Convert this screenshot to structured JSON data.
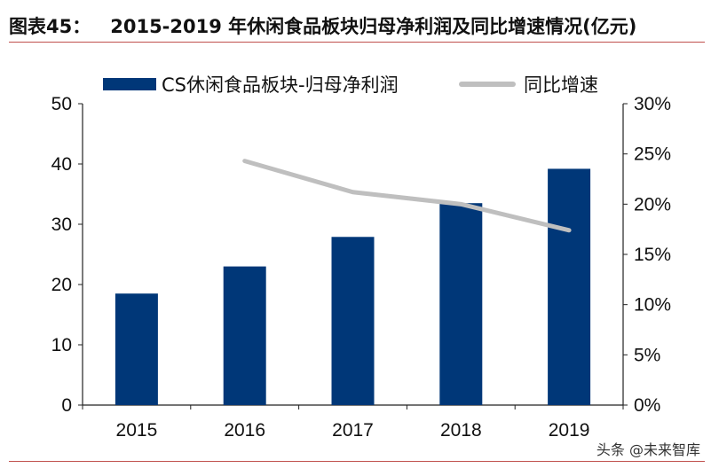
{
  "title": {
    "figure_no": "图表45：",
    "text": "2015-2019 年休闲食品板块归母净利润及同比增速情况(亿元)"
  },
  "watermark": "头条 @未来智库",
  "chart_data": {
    "type": "bar+line",
    "categories": [
      "2015",
      "2016",
      "2017",
      "2018",
      "2019"
    ],
    "series": [
      {
        "name": "CS休闲食品板块-归母净利润",
        "type": "bar",
        "axis": "left",
        "color": "#003778",
        "values": [
          18.5,
          23.0,
          27.9,
          33.5,
          39.2
        ]
      },
      {
        "name": "同比增速",
        "type": "line",
        "axis": "right",
        "color": "#bfbfbf",
        "values": [
          null,
          24.3,
          21.2,
          20.0,
          17.4
        ]
      }
    ],
    "left_axis": {
      "ylim": [
        0,
        50
      ],
      "ticks": [
        "0",
        "10",
        "20",
        "30",
        "40",
        "50"
      ]
    },
    "right_axis": {
      "ylim": [
        0,
        30
      ],
      "ticks": [
        "0%",
        "5%",
        "10%",
        "15%",
        "20%",
        "25%",
        "30%"
      ]
    },
    "legend": "top",
    "grid": false
  }
}
